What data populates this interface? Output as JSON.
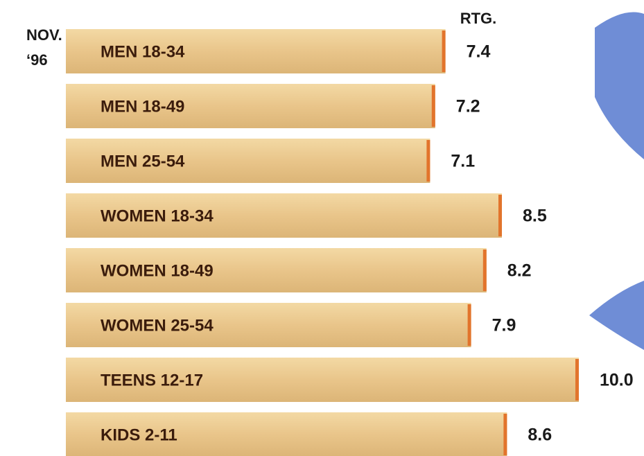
{
  "chart_data": {
    "type": "bar",
    "orientation": "horizontal",
    "annotations": [
      "NOV.",
      "‘96"
    ],
    "value_header": "RTG.",
    "categories": [
      "MEN 18-34",
      "MEN 18-49",
      "MEN 25-54",
      "WOMEN 18-34",
      "WOMEN 18-49",
      "WOMEN 25-54",
      "TEENS 12-17",
      "KIDS 2-11"
    ],
    "values": [
      7.4,
      7.2,
      7.1,
      8.5,
      8.2,
      7.9,
      10.0,
      8.6
    ],
    "value_labels": [
      "7.4",
      "7.2",
      "7.1",
      "8.5",
      "8.2",
      "7.9",
      "10.0",
      "8.6"
    ],
    "color": "#ecc98d",
    "edge_color": "#e2742c"
  }
}
